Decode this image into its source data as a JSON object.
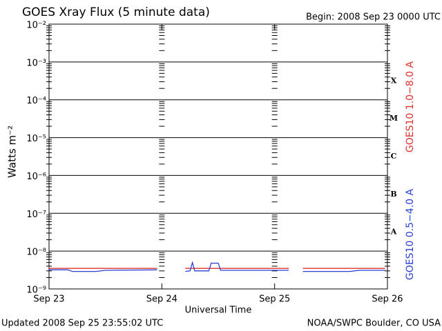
{
  "chart_data": {
    "type": "line",
    "title": "GOES Xray Flux (5 minute data)",
    "subtitle": "Begin:  2008 Sep 23 0000 UTC",
    "y_label": "Watts m⁻²",
    "x_label": "Universal Time",
    "footer_left": "Updated 2008 Sep 25 23:55:02 UTC",
    "footer_right": "NOAA/SWPC Boulder, CO USA",
    "log_y": true,
    "grid": true,
    "legend": "right",
    "ylim": [
      1e-09,
      0.01
    ],
    "yticks": [
      {
        "value": 1e-09,
        "label": "10⁻⁹"
      },
      {
        "value": 1e-08,
        "label": "10⁻⁸"
      },
      {
        "value": 1e-07,
        "label": "10⁻⁷"
      },
      {
        "value": 1e-06,
        "label": "10⁻⁶"
      },
      {
        "value": 1e-05,
        "label": "10⁻⁵"
      },
      {
        "value": 0.0001,
        "label": "10⁻⁴"
      },
      {
        "value": 0.001,
        "label": "10⁻³"
      },
      {
        "value": 0.01,
        "label": "10⁻²"
      }
    ],
    "flare_classes": [
      {
        "value": 1e-08,
        "label": "A"
      },
      {
        "value": 1e-07,
        "label": "B"
      },
      {
        "value": 1e-06,
        "label": "C"
      },
      {
        "value": 1e-05,
        "label": "M"
      },
      {
        "value": 0.0001,
        "label": "X"
      }
    ],
    "xlim": [
      "2008-09-23T00:00",
      "2008-09-26T00:00"
    ],
    "xticks": [
      {
        "value": "2008-09-23T00:00",
        "label": "Sep 23"
      },
      {
        "value": "2008-09-24T00:00",
        "label": "Sep 24"
      },
      {
        "value": "2008-09-25T00:00",
        "label": "Sep 25"
      },
      {
        "value": "2008-09-26T00:00",
        "label": "Sep 26"
      }
    ],
    "x": [
      "2008-09-23T00:00",
      "2008-09-23T04:00",
      "2008-09-23T05:00",
      "2008-09-23T10:00",
      "2008-09-23T12:00",
      "2008-09-23T23:00",
      "2008-09-24T01:00",
      "2008-09-24T05:00",
      "2008-09-24T06:00",
      "2008-09-24T06:30",
      "2008-09-24T07:00",
      "2008-09-24T10:00",
      "2008-09-24T10:30",
      "2008-09-24T12:00",
      "2008-09-24T12:30",
      "2008-09-25T00:00",
      "2008-09-25T03:00",
      "2008-09-25T04:00",
      "2008-09-25T06:00",
      "2008-09-25T16:00",
      "2008-09-25T18:00",
      "2008-09-25T23:30"
    ],
    "series": [
      {
        "name": "GOES10 1.0−8.0 A",
        "color": "#e0302a",
        "values": [
          3.5e-09,
          3.5e-09,
          3.5e-09,
          3.5e-09,
          3.5e-09,
          3.5e-09,
          null,
          3.5e-09,
          3.5e-09,
          3.5e-09,
          3.5e-09,
          3.5e-09,
          3.5e-09,
          3.5e-09,
          3.5e-09,
          3.5e-09,
          3.5e-09,
          null,
          3.5e-09,
          3.5e-09,
          3.5e-09,
          3.5e-09
        ]
      },
      {
        "name": "GOES10 0.5−4.0 A",
        "color": "#2a3fd8",
        "values": [
          3.2e-09,
          3.2e-09,
          2.9e-09,
          2.9e-09,
          3.1e-09,
          3.2e-09,
          null,
          2.9e-09,
          3e-09,
          5e-09,
          3e-09,
          3e-09,
          4.8e-09,
          4.8e-09,
          3.1e-09,
          3.1e-09,
          3.1e-09,
          null,
          2.9e-09,
          2.9e-09,
          3.1e-09,
          3.1e-09
        ]
      }
    ]
  }
}
